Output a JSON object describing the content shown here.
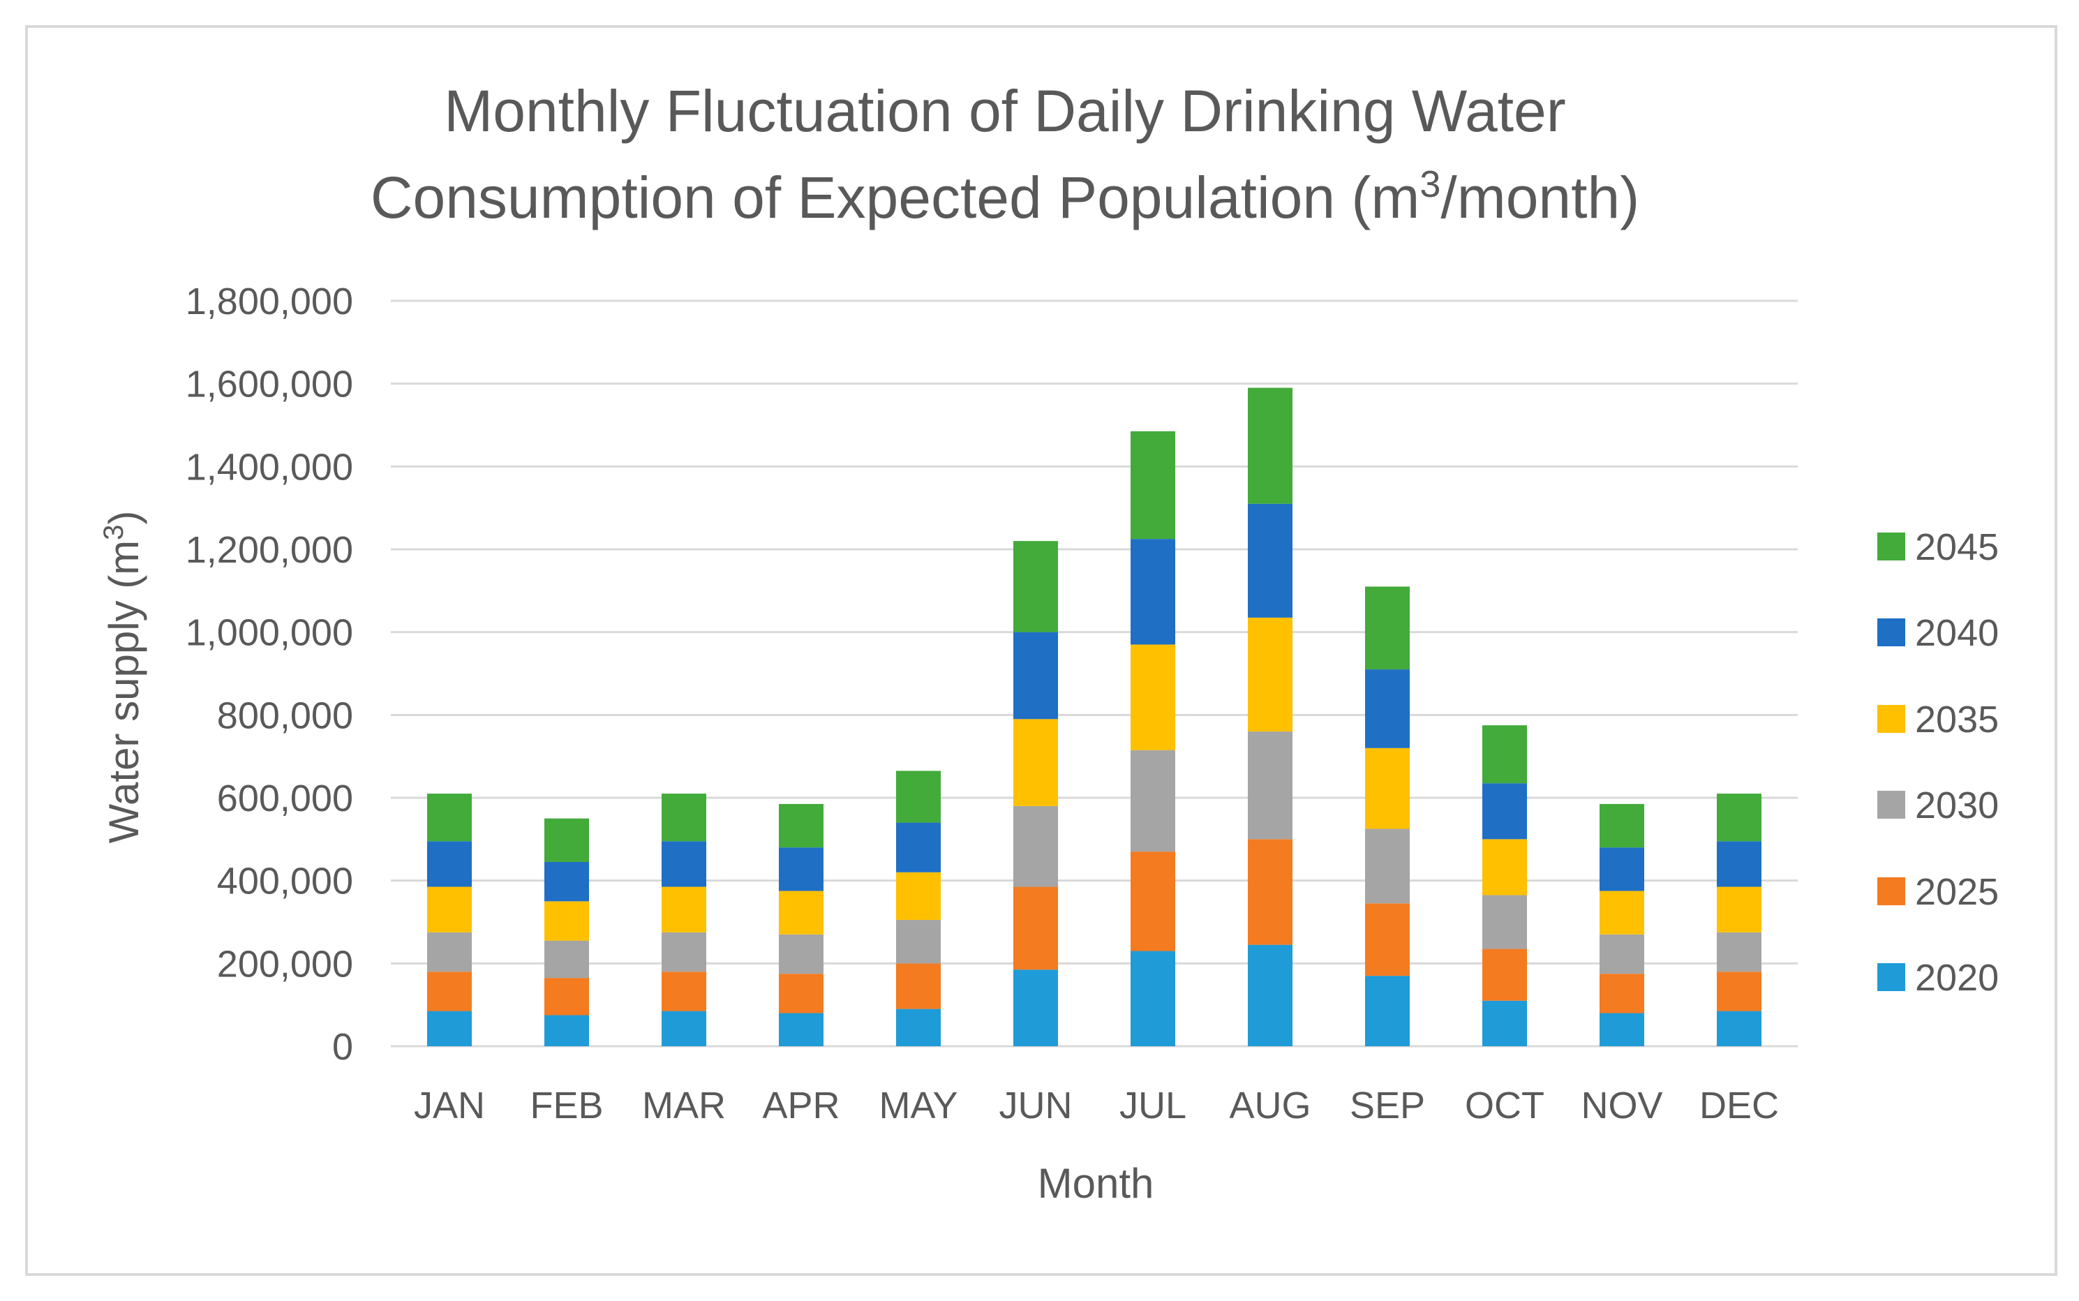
{
  "chart_data": {
    "type": "bar",
    "stacked": true,
    "title_line1": "Monthly Fluctuation of Daily Drinking Water",
    "title_line2_main": "Consumption of Expected Population (m",
    "title_line2_sup": "3",
    "title_line2_end": "/month)",
    "xlabel": "Month",
    "ylabel_main": "Water supply (m",
    "ylabel_sup": "3",
    "ylabel_end": ")",
    "ylim": [
      0,
      1800000
    ],
    "yticks": [
      0,
      200000,
      400000,
      600000,
      800000,
      1000000,
      1200000,
      1400000,
      1600000,
      1800000
    ],
    "ytick_labels": [
      "0",
      "200,000",
      "400,000",
      "600,000",
      "800,000",
      "1,000,000",
      "1,200,000",
      "1,400,000",
      "1,600,000",
      "1,800,000"
    ],
    "categories": [
      "JAN",
      "FEB",
      "MAR",
      "APR",
      "MAY",
      "JUN",
      "JUL",
      "AUG",
      "SEP",
      "OCT",
      "NOV",
      "DEC"
    ],
    "legend_position": "right",
    "series": [
      {
        "name": "2020",
        "color": "#1f9bd7",
        "values": [
          85000,
          75000,
          85000,
          80000,
          90000,
          185000,
          230000,
          245000,
          170000,
          110000,
          80000,
          85000
        ]
      },
      {
        "name": "2025",
        "color": "#f47b20",
        "values": [
          95000,
          90000,
          95000,
          95000,
          110000,
          200000,
          240000,
          255000,
          175000,
          125000,
          95000,
          95000
        ]
      },
      {
        "name": "2030",
        "color": "#a5a5a5",
        "values": [
          95000,
          90000,
          95000,
          95000,
          105000,
          195000,
          245000,
          260000,
          180000,
          130000,
          95000,
          95000
        ]
      },
      {
        "name": "2035",
        "color": "#ffc000",
        "values": [
          110000,
          95000,
          110000,
          105000,
          115000,
          210000,
          255000,
          275000,
          195000,
          135000,
          105000,
          110000
        ]
      },
      {
        "name": "2040",
        "color": "#1f6fc5",
        "values": [
          110000,
          95000,
          110000,
          105000,
          120000,
          210000,
          255000,
          275000,
          190000,
          135000,
          105000,
          110000
        ]
      },
      {
        "name": "2045",
        "color": "#42ab3a",
        "values": [
          115000,
          105000,
          115000,
          105000,
          125000,
          220000,
          260000,
          280000,
          200000,
          140000,
          105000,
          115000
        ]
      }
    ]
  }
}
